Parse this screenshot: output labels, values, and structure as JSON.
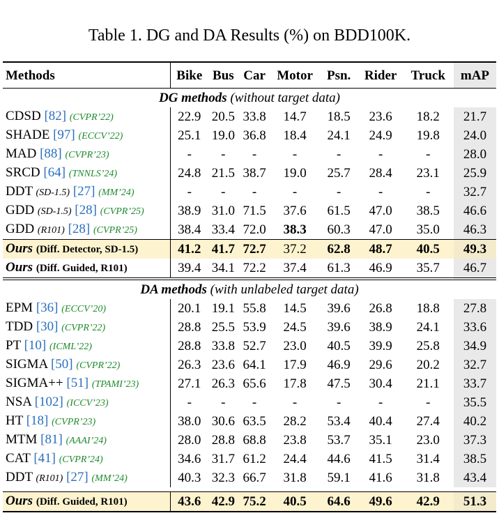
{
  "caption": "Table 1. DG and DA Results (%) on BDD100K.",
  "columns": [
    "Methods",
    "Bike",
    "Bus",
    "Car",
    "Motor",
    "Psn.",
    "Rider",
    "Truck",
    "mAP"
  ],
  "dg_section": {
    "title": "DG methods",
    "subtitle": "(without target data)"
  },
  "dg_rows": [
    {
      "name": "CDSD",
      "tag": "",
      "ref": "[82]",
      "venue": "(CVPR’22)",
      "values": [
        "22.9",
        "20.5",
        "33.8",
        "14.7",
        "18.5",
        "23.6",
        "18.2",
        "21.7"
      ]
    },
    {
      "name": "SHADE",
      "tag": "",
      "ref": "[97]",
      "venue": "(ECCV’22)",
      "values": [
        "25.1",
        "19.0",
        "36.8",
        "18.4",
        "24.1",
        "24.9",
        "19.8",
        "24.0"
      ]
    },
    {
      "name": "MAD",
      "tag": "",
      "ref": "[88]",
      "venue": "(CVPR’23)",
      "values": [
        "-",
        "-",
        "-",
        "-",
        "-",
        "-",
        "-",
        "28.0"
      ]
    },
    {
      "name": "SRCD",
      "tag": "",
      "ref": "[64]",
      "venue": "(TNNLS’24)",
      "values": [
        "24.8",
        "21.5",
        "38.7",
        "19.0",
        "25.7",
        "28.4",
        "23.1",
        "25.9"
      ]
    },
    {
      "name": "DDT",
      "tag": "(SD-1.5)",
      "ref": "[27]",
      "venue": "(MM’24)",
      "values": [
        "-",
        "-",
        "-",
        "-",
        "-",
        "-",
        "-",
        "32.7"
      ]
    },
    {
      "name": "GDD",
      "tag": "(SD-1.5)",
      "ref": "[28]",
      "venue": "(CVPR’25)",
      "values": [
        "38.9",
        "31.0",
        "71.5",
        "37.6",
        "61.5",
        "47.0",
        "38.5",
        "46.6"
      ]
    },
    {
      "name": "GDD",
      "tag": "(R101)",
      "ref": "[28]",
      "venue": "(CVPR’25)",
      "values": [
        "38.4",
        "33.4",
        "72.0",
        "38.3",
        "60.3",
        "47.0",
        "35.0",
        "46.3"
      ],
      "bold": [
        false,
        false,
        false,
        true,
        false,
        false,
        false,
        false
      ]
    }
  ],
  "dg_ours": [
    {
      "name": "Ours",
      "tag": "(Diff. Detector, SD-1.5)",
      "values": [
        "41.2",
        "41.7",
        "72.7",
        "37.2",
        "62.8",
        "48.7",
        "40.5",
        "49.3"
      ],
      "bold": [
        true,
        true,
        true,
        false,
        true,
        true,
        true,
        true
      ],
      "highlight": true
    },
    {
      "name": "Ours",
      "tag": "(Diff. Guided, R101)",
      "values": [
        "39.4",
        "34.1",
        "72.2",
        "37.4",
        "61.3",
        "46.9",
        "35.7",
        "46.7"
      ],
      "bold": [
        false,
        false,
        false,
        false,
        false,
        false,
        false,
        false
      ],
      "highlight": false
    }
  ],
  "da_section": {
    "title": "DA methods",
    "subtitle": "(with unlabeled target data)"
  },
  "da_rows": [
    {
      "name": "EPM",
      "tag": "",
      "ref": "[36]",
      "venue": "(ECCV’20)",
      "values": [
        "20.1",
        "19.1",
        "55.8",
        "14.5",
        "39.6",
        "26.8",
        "18.8",
        "27.8"
      ]
    },
    {
      "name": "TDD",
      "tag": "",
      "ref": "[30]",
      "venue": "(CVPR’22)",
      "values": [
        "28.8",
        "25.5",
        "53.9",
        "24.5",
        "39.6",
        "38.9",
        "24.1",
        "33.6"
      ]
    },
    {
      "name": "PT",
      "tag": "",
      "ref": "[10]",
      "venue": "(ICML’22)",
      "values": [
        "28.8",
        "33.8",
        "52.7",
        "23.0",
        "40.5",
        "39.9",
        "25.8",
        "34.9"
      ]
    },
    {
      "name": "SIGMA",
      "tag": "",
      "ref": "[50]",
      "venue": "(CVPR’22)",
      "values": [
        "26.3",
        "23.6",
        "64.1",
        "17.9",
        "46.9",
        "29.6",
        "20.2",
        "32.7"
      ]
    },
    {
      "name": "SIGMA++",
      "tag": "",
      "ref": "[51]",
      "venue": "(TPAMI’23)",
      "values": [
        "27.1",
        "26.3",
        "65.6",
        "17.8",
        "47.5",
        "30.4",
        "21.1",
        "33.7"
      ]
    },
    {
      "name": "NSA",
      "tag": "",
      "ref": "[102]",
      "venue": "(ICCV’23)",
      "values": [
        "-",
        "-",
        "-",
        "-",
        "-",
        "-",
        "-",
        "35.5"
      ]
    },
    {
      "name": "HT",
      "tag": "",
      "ref": "[18]",
      "venue": "(CVPR’23)",
      "values": [
        "38.0",
        "30.6",
        "63.5",
        "28.2",
        "53.4",
        "40.4",
        "27.4",
        "40.2"
      ]
    },
    {
      "name": "MTM",
      "tag": "",
      "ref": "[81]",
      "venue": "(AAAI’24)",
      "values": [
        "28.0",
        "28.8",
        "68.8",
        "23.8",
        "53.7",
        "35.1",
        "23.0",
        "37.3"
      ]
    },
    {
      "name": "CAT",
      "tag": "",
      "ref": "[41]",
      "venue": "(CVPR’24)",
      "values": [
        "34.6",
        "31.7",
        "61.2",
        "24.4",
        "44.6",
        "41.5",
        "31.4",
        "38.5"
      ]
    },
    {
      "name": "DDT",
      "tag": "(R101)",
      "ref": "[27]",
      "venue": "(MM’24)",
      "values": [
        "40.3",
        "32.3",
        "66.7",
        "31.8",
        "59.1",
        "41.6",
        "31.8",
        "43.4"
      ]
    }
  ],
  "da_ours": [
    {
      "name": "Ours",
      "tag": "(Diff. Guided, R101)",
      "values": [
        "43.6",
        "42.9",
        "75.2",
        "40.5",
        "64.6",
        "49.6",
        "42.9",
        "51.3"
      ],
      "bold": [
        true,
        true,
        true,
        true,
        true,
        true,
        true,
        true
      ],
      "highlight": true
    }
  ]
}
